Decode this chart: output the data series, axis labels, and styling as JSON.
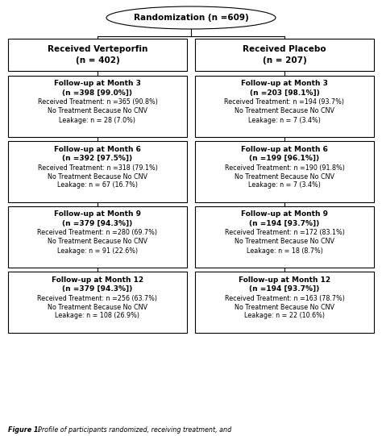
{
  "title_ellipse": "Randomization (n =609)",
  "left_top_bold1": "Received Verteporfin",
  "left_top_bold2": "(n = 402)",
  "right_top_bold1": "Received Placebo",
  "right_top_bold2": "(n = 207)",
  "boxes": [
    {
      "bold_line1": "Follow-up at Month 3",
      "bold_line2": "(n =398 [99.0%])",
      "lines": [
        "Received Treatment: n =365 (90.8%)",
        "No Treatment Because No CNV",
        "Leakage: n = 28 (7.0%)"
      ]
    },
    {
      "bold_line1": "Follow-up at Month 3",
      "bold_line2": "(n =203 [98.1%])",
      "lines": [
        "Received Treatment: n =194 (93.7%)",
        "No Treatment Because No CNV",
        "Leakage: n = 7 (3.4%)"
      ]
    },
    {
      "bold_line1": "Follow-up at Month 6",
      "bold_line2": "(n =392 [97.5%])",
      "lines": [
        "Received Treatment: n =318 (79.1%)",
        "No Treatment Because No CNV",
        "Leakage: n = 67 (16.7%)"
      ]
    },
    {
      "bold_line1": "Follow-up at Month 6",
      "bold_line2": "(n =199 [96.1%])",
      "lines": [
        "Received Treatment: n =190 (91.8%)",
        "No Treatment Because No CNV",
        "Leakage: n = 7 (3.4%)"
      ]
    },
    {
      "bold_line1": "Follow-up at Month 9",
      "bold_line2": "(n =379 [94.3%])",
      "lines": [
        "Received Treatment: n =280 (69.7%)",
        "No Treatment Because No CNV",
        "Leakage: n = 91 (22.6%)"
      ]
    },
    {
      "bold_line1": "Follow-up at Month 9",
      "bold_line2": "(n =194 [93.7%])",
      "lines": [
        "Received Treatment: n =172 (83.1%)",
        "No Treatment Because No CNV",
        "Leakage: n = 18 (8.7%)"
      ]
    },
    {
      "bold_line1": "Follow-up at Month 12",
      "bold_line2": "(n =379 [94.3%])",
      "lines": [
        "Received Treatment: n =256 (63.7%)",
        "No Treatment Because No CNV",
        "Leakage: n = 108 (26.9%)"
      ]
    },
    {
      "bold_line1": "Follow-up at Month 12",
      "bold_line2": "(n =194 [93.7%])",
      "lines": [
        "Received Treatment: n =163 (78.7%)",
        "No Treatment Because No CNV",
        "Leakage: n = 22 (10.6%)"
      ]
    }
  ],
  "caption_bold": "Figure 1.",
  "caption_italic": "  Profile of participants randomized, receiving treatment, and",
  "bg_color": "#ffffff",
  "edge_color": "#000000",
  "text_color": "#000000"
}
